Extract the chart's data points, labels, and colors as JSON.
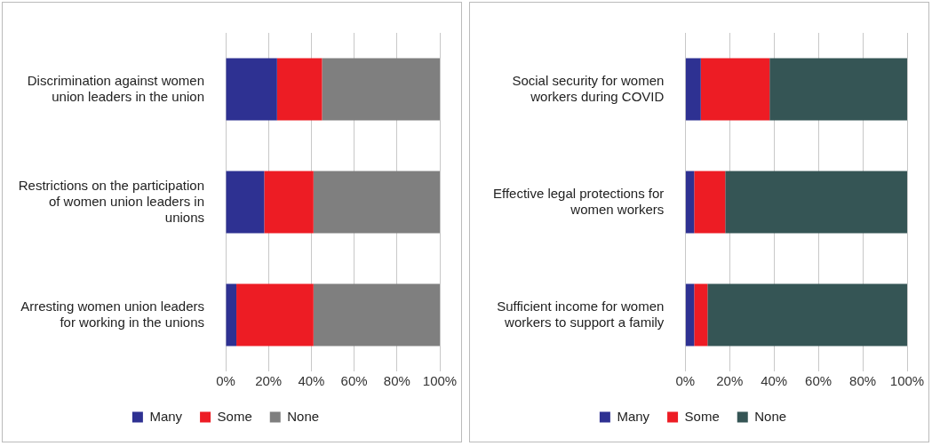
{
  "chart_data": [
    {
      "type": "bar",
      "orientation": "horizontal",
      "stacked": true,
      "categories": [
        "Discrimination against women union leaders in the union",
        "Restrictions on the participation of women union leaders in unions",
        "Arresting women union leaders for working in the unions"
      ],
      "series": [
        {
          "name": "Many",
          "color": "#2e3192",
          "values": [
            24,
            18,
            5
          ]
        },
        {
          "name": "Some",
          "color": "#ed1c24",
          "values": [
            21,
            23,
            36
          ]
        },
        {
          "name": "None",
          "color": "#7f7f7f",
          "values": [
            55,
            59,
            59
          ]
        }
      ],
      "xlim": [
        0,
        100
      ],
      "xticks": [
        {
          "value": 0,
          "label": "0%"
        },
        {
          "value": 20,
          "label": "20%"
        },
        {
          "value": 40,
          "label": "40%"
        },
        {
          "value": 60,
          "label": "60%"
        },
        {
          "value": 80,
          "label": "80%"
        },
        {
          "value": 100,
          "label": "100%"
        }
      ],
      "grid": "x",
      "legend": "bottom"
    },
    {
      "type": "bar",
      "orientation": "horizontal",
      "stacked": true,
      "categories": [
        "Social security for women workers during COVID",
        "Effective legal protections for women workers",
        "Sufficient income for women workers to support a family"
      ],
      "series": [
        {
          "name": "Many",
          "color": "#2e3192",
          "values": [
            7,
            4,
            4
          ]
        },
        {
          "name": "Some",
          "color": "#ed1c24",
          "values": [
            31,
            14,
            6
          ]
        },
        {
          "name": "None",
          "color": "#355555",
          "values": [
            62,
            82,
            90
          ]
        }
      ],
      "xlim": [
        0,
        100
      ],
      "xticks": [
        {
          "value": 0,
          "label": "0%"
        },
        {
          "value": 20,
          "label": "20%"
        },
        {
          "value": 40,
          "label": "40%"
        },
        {
          "value": 60,
          "label": "60%"
        },
        {
          "value": 80,
          "label": "80%"
        },
        {
          "value": 100,
          "label": "100%"
        }
      ],
      "grid": "x",
      "legend": "bottom"
    }
  ]
}
